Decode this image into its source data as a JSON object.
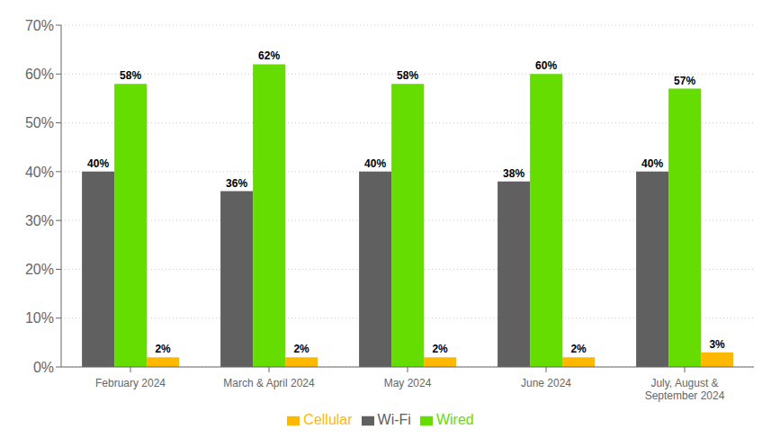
{
  "chart_data": {
    "type": "bar",
    "categories": [
      "February 2024",
      "March & April 2024",
      "May 2024",
      "June 2024",
      "July, August &\nSeptember 2024"
    ],
    "series": [
      {
        "name": "Wi-Fi",
        "color": "#606060",
        "values": [
          40,
          36,
          40,
          38,
          40
        ],
        "value_labels": [
          "40%",
          "36%",
          "40%",
          "38%",
          "40%"
        ]
      },
      {
        "name": "Wired",
        "color": "#66dd00",
        "values": [
          58,
          62,
          58,
          60,
          57
        ],
        "value_labels": [
          "58%",
          "62%",
          "58%",
          "60%",
          "57%"
        ]
      },
      {
        "name": "Cellular",
        "color": "#ffb800",
        "values": [
          2,
          2,
          2,
          2,
          3
        ],
        "value_labels": [
          "2%",
          "2%",
          "2%",
          "2%",
          "3%"
        ]
      }
    ],
    "ylim": [
      0,
      70
    ],
    "yticks": [
      {
        "value": 0,
        "label": "0%"
      },
      {
        "value": 10,
        "label": "10%"
      },
      {
        "value": 20,
        "label": "20%"
      },
      {
        "value": 30,
        "label": "30%"
      },
      {
        "value": 40,
        "label": "40%"
      },
      {
        "value": 50,
        "label": "50%"
      },
      {
        "value": 60,
        "label": "60%"
      },
      {
        "value": 70,
        "label": "70%"
      }
    ],
    "grid": true,
    "data_labels": true,
    "legend": "bottom"
  }
}
